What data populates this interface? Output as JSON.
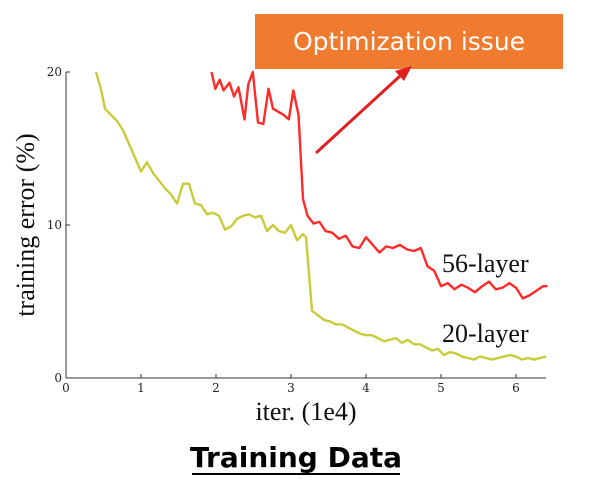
{
  "chart_data": {
    "type": "line",
    "title": "",
    "xlabel": "iter. (1e4)",
    "ylabel": "training error (%)",
    "xlim": [
      0,
      6.4
    ],
    "ylim": [
      0,
      20
    ],
    "xticks": [
      0,
      1,
      2,
      3,
      4,
      5,
      6
    ],
    "yticks": [
      0,
      10,
      20
    ],
    "colors": {
      "56-layer": "#ff2a2a",
      "20-layer": "#c8cc3a"
    },
    "series": [
      {
        "name": "56-layer",
        "x": [
          1.94,
          1.99,
          2.05,
          2.1,
          2.18,
          2.24,
          2.3,
          2.38,
          2.43,
          2.49,
          2.56,
          2.63,
          2.7,
          2.76,
          2.83,
          2.9,
          2.97,
          3.03,
          3.1,
          3.16,
          3.22,
          3.3,
          3.38,
          3.46,
          3.55,
          3.64,
          3.73,
          3.82,
          3.91,
          4.0,
          4.09,
          4.18,
          4.27,
          4.36,
          4.45,
          4.55,
          4.64,
          4.73,
          4.82,
          4.91,
          5.0,
          5.09,
          5.18,
          5.27,
          5.36,
          5.45,
          5.55,
          5.64,
          5.73,
          5.82,
          5.91,
          6.0,
          6.09,
          6.18,
          6.27,
          6.36,
          6.42
        ],
        "y": [
          20.0,
          18.9,
          19.5,
          18.8,
          19.3,
          18.4,
          19.0,
          16.9,
          19.2,
          20.0,
          16.7,
          16.6,
          18.9,
          17.6,
          17.4,
          17.2,
          16.9,
          18.8,
          17.2,
          11.7,
          10.6,
          10.1,
          10.2,
          9.6,
          9.5,
          9.1,
          9.3,
          8.6,
          8.5,
          9.2,
          8.7,
          8.2,
          8.6,
          8.5,
          8.7,
          8.4,
          8.3,
          8.5,
          7.3,
          7.0,
          6.0,
          6.2,
          5.8,
          6.1,
          5.9,
          5.6,
          6.0,
          6.3,
          5.8,
          5.9,
          6.2,
          5.9,
          5.2,
          5.4,
          5.7,
          6.0,
          6.0
        ]
      },
      {
        "name": "20-layer",
        "x": [
          0.4,
          0.46,
          0.52,
          0.6,
          0.68,
          0.76,
          0.84,
          0.92,
          1.0,
          1.08,
          1.16,
          1.24,
          1.32,
          1.4,
          1.48,
          1.56,
          1.64,
          1.72,
          1.8,
          1.88,
          1.96,
          2.04,
          2.12,
          2.2,
          2.28,
          2.36,
          2.44,
          2.52,
          2.6,
          2.68,
          2.76,
          2.84,
          2.92,
          3.0,
          3.08,
          3.16,
          3.2,
          3.28,
          3.36,
          3.44,
          3.52,
          3.6,
          3.68,
          3.76,
          3.84,
          3.92,
          4.0,
          4.08,
          4.16,
          4.24,
          4.32,
          4.4,
          4.48,
          4.56,
          4.64,
          4.72,
          4.8,
          4.88,
          4.96,
          5.04,
          5.12,
          5.2,
          5.28,
          5.36,
          5.44,
          5.52,
          5.6,
          5.68,
          5.76,
          5.84,
          5.92,
          6.0,
          6.08,
          6.16,
          6.24,
          6.32,
          6.4
        ],
        "y": [
          20.0,
          19.0,
          17.6,
          17.2,
          16.8,
          16.2,
          15.3,
          14.4,
          13.5,
          14.1,
          13.4,
          12.9,
          12.4,
          12.0,
          11.4,
          12.7,
          12.7,
          11.4,
          11.3,
          10.7,
          10.8,
          10.6,
          9.7,
          9.9,
          10.4,
          10.6,
          10.7,
          10.5,
          10.6,
          9.6,
          10.0,
          9.6,
          9.5,
          10.0,
          9.0,
          9.4,
          9.2,
          4.4,
          4.1,
          3.8,
          3.7,
          3.5,
          3.5,
          3.3,
          3.1,
          2.9,
          2.8,
          2.8,
          2.6,
          2.4,
          2.5,
          2.6,
          2.3,
          2.5,
          2.2,
          2.2,
          2.0,
          1.8,
          1.9,
          1.5,
          1.7,
          1.6,
          1.4,
          1.3,
          1.2,
          1.4,
          1.3,
          1.2,
          1.3,
          1.4,
          1.5,
          1.4,
          1.2,
          1.3,
          1.2,
          1.3,
          1.4
        ]
      }
    ],
    "annotations": [
      {
        "text": "56-layer",
        "target": "56-layer"
      },
      {
        "text": "20-layer",
        "target": "20-layer"
      }
    ]
  },
  "callout": {
    "text": "Optimization issue",
    "background": "#f07b2e",
    "arrow_color": "#e02020"
  },
  "footer": {
    "title": "Training Data"
  }
}
